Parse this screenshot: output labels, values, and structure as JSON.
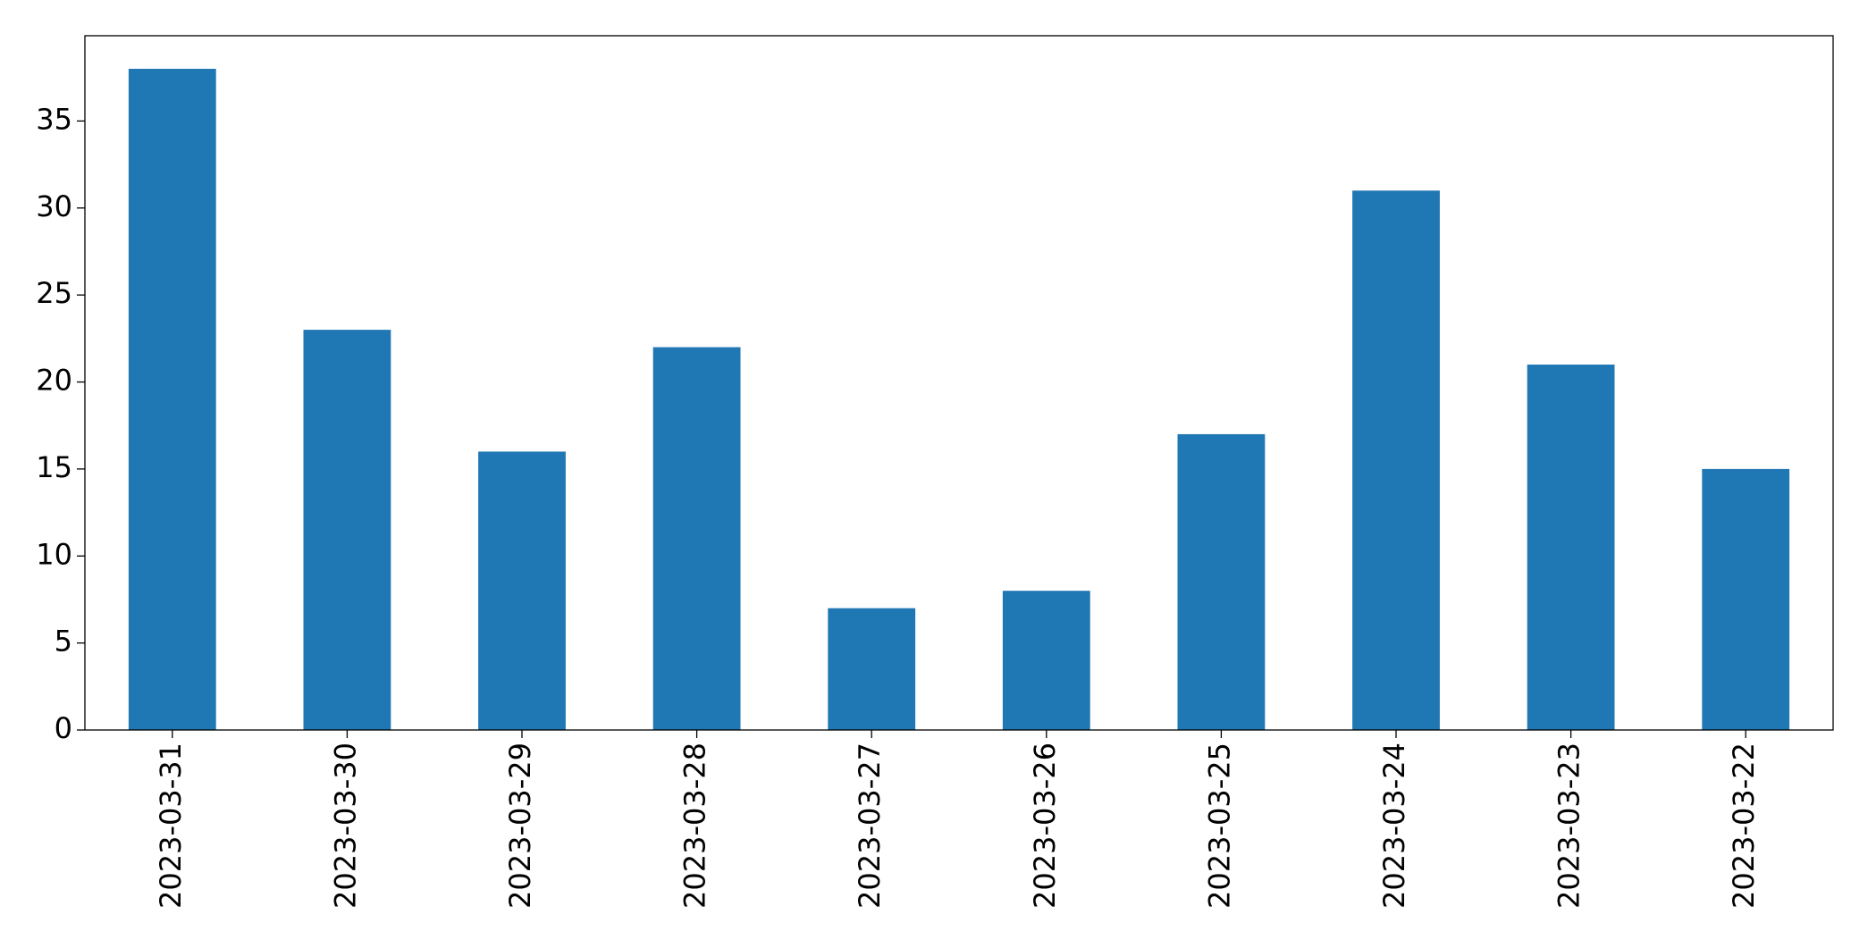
{
  "chart_data": {
    "type": "bar",
    "categories": [
      "2023-03-31",
      "2023-03-30",
      "2023-03-29",
      "2023-03-28",
      "2023-03-27",
      "2023-03-26",
      "2023-03-25",
      "2023-03-24",
      "2023-03-23",
      "2023-03-22"
    ],
    "values": [
      38,
      23,
      16,
      22,
      7,
      8,
      17,
      31,
      21,
      15
    ],
    "color": "#1f77b4",
    "ylim": [
      0,
      39.9
    ],
    "yticks": [
      0,
      5,
      10,
      15,
      20,
      25,
      30,
      35
    ],
    "grid": false
  }
}
